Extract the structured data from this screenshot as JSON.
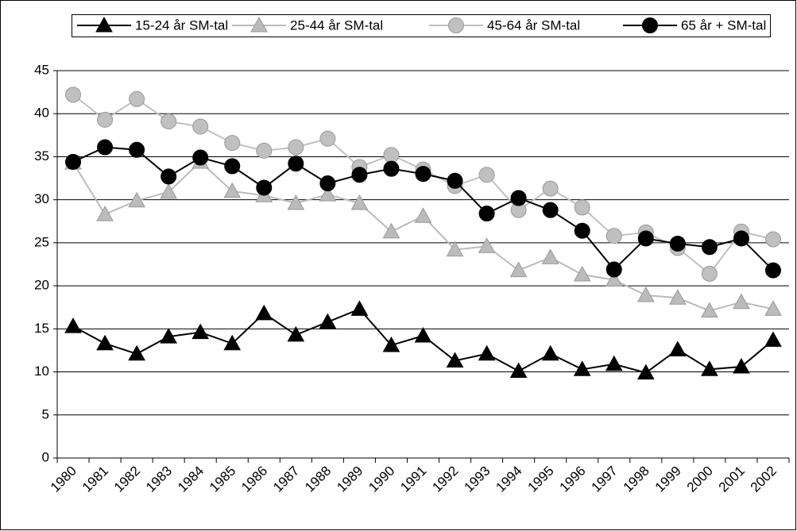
{
  "chart_data": {
    "type": "line",
    "categories": [
      "1980",
      "1981",
      "1982",
      "1983",
      "1984",
      "1985",
      "1986",
      "1987",
      "1988",
      "1989",
      "1990",
      "1991",
      "1992",
      "1993",
      "1994",
      "1995",
      "1996",
      "1997",
      "1998",
      "1999",
      "2000",
      "2001",
      "2002"
    ],
    "series": [
      {
        "name": "15-24 år SM-tal",
        "color": "#000000",
        "marker": "triangle",
        "values": [
          15.3,
          13.3,
          12.1,
          14.1,
          14.6,
          13.3,
          16.8,
          14.3,
          15.8,
          17.3,
          13.1,
          14.2,
          11.3,
          12.1,
          10.1,
          12.1,
          10.3,
          10.9,
          9.9,
          12.6,
          10.3,
          10.6,
          13.7
        ]
      },
      {
        "name": "25-44 år SM-tal",
        "color": "#bbbbbb",
        "marker": "triangle",
        "values": [
          34.3,
          28.3,
          29.9,
          30.9,
          34.4,
          31.0,
          30.5,
          29.6,
          30.6,
          29.6,
          26.3,
          28.1,
          24.2,
          24.6,
          21.8,
          23.3,
          21.3,
          20.7,
          18.9,
          18.6,
          17.1,
          18.1,
          17.3
        ]
      },
      {
        "name": "45-64 år SM-tal",
        "color": "#c0c0c0",
        "marker": "circle",
        "values": [
          42.2,
          39.3,
          41.7,
          39.1,
          38.5,
          36.6,
          35.7,
          36.1,
          37.1,
          33.8,
          35.2,
          33.5,
          31.6,
          32.9,
          28.8,
          31.3,
          29.1,
          25.8,
          26.2,
          24.4,
          21.4,
          26.3,
          25.4
        ]
      },
      {
        "name": "65 år + SM-tal",
        "color": "#000000",
        "marker": "circle",
        "values": [
          34.4,
          36.1,
          35.8,
          32.7,
          34.9,
          33.9,
          31.4,
          34.2,
          31.9,
          32.9,
          33.6,
          33.0,
          32.2,
          28.4,
          30.2,
          28.8,
          26.4,
          21.9,
          25.5,
          24.9,
          24.5,
          25.5,
          21.8
        ]
      }
    ],
    "ylim": [
      0,
      45
    ],
    "yticks": [
      0,
      5,
      10,
      15,
      20,
      25,
      30,
      35,
      40,
      45
    ],
    "grid": true,
    "legend": "top"
  }
}
